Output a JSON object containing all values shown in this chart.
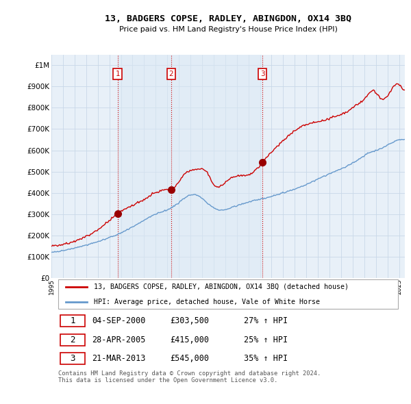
{
  "title": "13, BADGERS COPSE, RADLEY, ABINGDON, OX14 3BQ",
  "subtitle": "Price paid vs. HM Land Registry's House Price Index (HPI)",
  "y_ticks": [
    0,
    100000,
    200000,
    300000,
    400000,
    500000,
    600000,
    700000,
    800000,
    900000,
    1000000
  ],
  "y_tick_labels": [
    "£0",
    "£100K",
    "£200K",
    "£300K",
    "£400K",
    "£500K",
    "£600K",
    "£700K",
    "£800K",
    "£900K",
    "£1M"
  ],
  "sale_year_floats": [
    2000.712,
    2005.33,
    2013.22
  ],
  "sale_prices": [
    303500,
    415000,
    545000
  ],
  "sale_labels": [
    "1",
    "2",
    "3"
  ],
  "sale_label_display": [
    [
      "1",
      "04-SEP-2000",
      "£303,500",
      "27% ↑ HPI"
    ],
    [
      "2",
      "28-APR-2005",
      "£415,000",
      "25% ↑ HPI"
    ],
    [
      "3",
      "21-MAR-2013",
      "£545,000",
      "35% ↑ HPI"
    ]
  ],
  "red_line_color": "#cc0000",
  "blue_line_color": "#6699cc",
  "shade_color": "#dce9f5",
  "grid_color": "#c8d8e8",
  "background_color": "#ffffff",
  "chart_bg_color": "#e8f0f8",
  "vline_color": "#cc0000",
  "legend_label_red": "13, BADGERS COPSE, RADLEY, ABINGDON, OX14 3BQ (detached house)",
  "legend_label_blue": "HPI: Average price, detached house, Vale of White Horse",
  "footer_text": "Contains HM Land Registry data © Crown copyright and database right 2024.\nThis data is licensed under the Open Government Licence v3.0.",
  "sale_marker_color": "#990000",
  "label_box_color": "#cc0000"
}
